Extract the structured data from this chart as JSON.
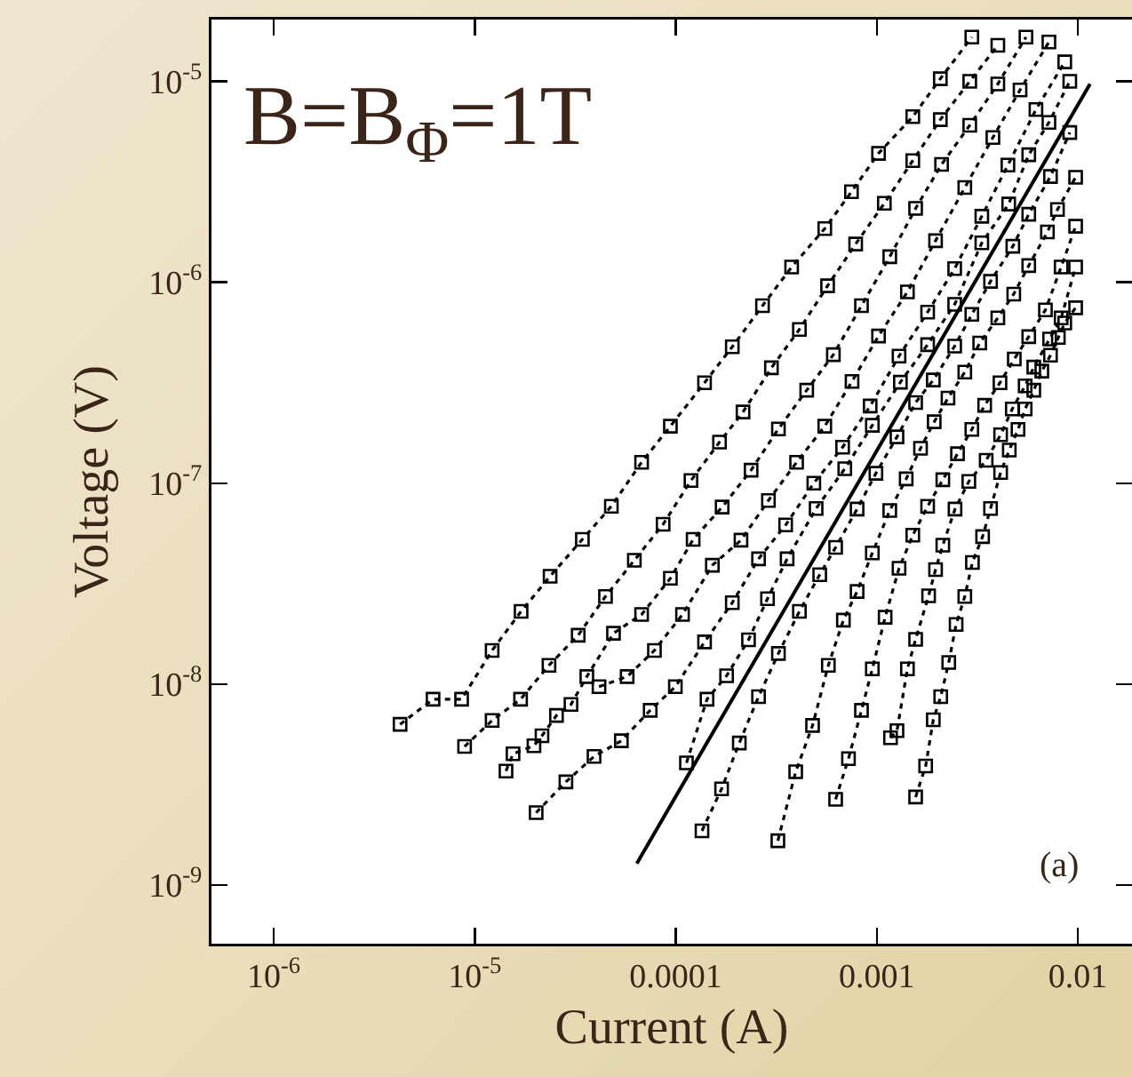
{
  "chart_data": {
    "type": "line",
    "xlabel": "Current (A)",
    "ylabel": "Voltage (V)",
    "log": "xy",
    "marker": "square",
    "line_style": "dotted",
    "annotations": [
      "B=B$_{Φ}$=1T",
      "(a)"
    ],
    "xlim": [
      4.9e-07,
      0.0186
    ],
    "ylim": [
      5.1e-10,
      2.03e-05
    ],
    "xticks": [
      {
        "value": 1e-06,
        "label": "10$^{-6}$"
      },
      {
        "value": 1e-05,
        "label": "10$^{-5}$"
      },
      {
        "value": 0.0001,
        "label": "0.0001"
      },
      {
        "value": 0.001,
        "label": "0.001"
      },
      {
        "value": 0.01,
        "label": "0.01"
      }
    ],
    "yticks": [
      {
        "value": 1e-09,
        "label": "10$^{-9}$"
      },
      {
        "value": 1e-08,
        "label": "10$^{-8}$"
      },
      {
        "value": 1e-07,
        "label": "10$^{-7}$"
      },
      {
        "value": 1e-06,
        "label": "10$^{-6}$"
      },
      {
        "value": 1e-05,
        "label": "10$^{-5}$"
      }
    ],
    "series": [
      {
        "color": "#000000",
        "x": [
          4.25e-06,
          6.2e-06,
          8.6e-06,
          1.22e-05,
          1.7e-05,
          2.37e-05,
          3.43e-05,
          4.78e-05,
          6.76e-05,
          9.4e-05,
          0.000139,
          0.000191,
          0.00027,
          0.000377,
          0.000551,
          0.000748,
          0.00102,
          0.00151,
          0.00207,
          0.00297
        ],
        "values": [
          6.3e-09,
          8.4e-09,
          8.4e-09,
          1.47e-08,
          2.3e-08,
          3.44e-08,
          5.25e-08,
          7.67e-08,
          1.27e-07,
          1.92e-07,
          3.16e-07,
          4.77e-07,
          7.64e-07,
          1.19e-06,
          1.85e-06,
          2.82e-06,
          4.38e-06,
          6.67e-06,
          1.03e-05,
          1.66e-05
        ]
      },
      {
        "color": "#000000",
        "x": [
          8.9e-06,
          1.22e-05,
          1.69e-05,
          2.34e-05,
          3.27e-05,
          4.47e-05,
          6.22e-05,
          8.65e-05,
          0.000119,
          0.000165,
          0.000216,
          0.000299,
          0.000412,
          0.000569,
          0.000785,
          0.00109,
          0.00151,
          0.00207,
          0.0029,
          0.004
        ],
        "values": [
          4.89e-09,
          6.59e-09,
          8.4e-09,
          1.24e-08,
          1.75e-08,
          2.73e-08,
          4.13e-08,
          6.24e-08,
          1.03e-07,
          1.6e-07,
          2.26e-07,
          3.75e-07,
          5.82e-07,
          9.6e-07,
          1.55e-06,
          2.47e-06,
          4.03e-06,
          6.45e-06,
          1e-05,
          1.51e-05
        ]
      },
      {
        "color": "#000000",
        "x": [
          1.43e-05,
          1.55e-05,
          1.97e-05,
          2.16e-05,
          2.55e-05,
          3.01e-05,
          3.61e-05,
          4.9e-05,
          6.76e-05,
          9.4e-05,
          0.000122,
          0.00017,
          0.000237,
          0.000324,
          0.000448,
          0.000608,
          0.000839,
          0.00116,
          0.00156,
          0.0021,
          0.0029,
          0.004,
          0.00552
        ],
        "values": [
          3.69e-09,
          4.5e-09,
          4.93e-09,
          5.53e-09,
          6.98e-09,
          7.91e-09,
          1.09e-08,
          1.79e-08,
          2.22e-08,
          3.36e-08,
          5.25e-08,
          7.6e-08,
          1.16e-07,
          1.86e-07,
          2.9e-07,
          4.36e-07,
          7.64e-07,
          1.34e-06,
          2.33e-06,
          3.86e-06,
          6.04e-06,
          9.7e-06,
          1.66e-05
        ]
      },
      {
        "color": "#000000",
        "x": [
          4.15e-05,
          5.73e-05,
          7.83e-05,
          0.000108,
          0.000152,
          0.000211,
          0.000289,
          0.000399,
          0.000551,
          0.000753,
          0.00102,
          0.00142,
          0.00196,
          0.00274,
          0.00378,
          0.00516,
          0.00718
        ],
        "values": [
          9.7e-09,
          1.09e-08,
          1.47e-08,
          2.22e-08,
          3.9e-08,
          5.2e-08,
          8.2e-08,
          1.27e-07,
          1.92e-07,
          3.21e-07,
          5.4e-07,
          8.95e-07,
          1.61e-06,
          2.96e-06,
          5.25e-06,
          9.06e-06,
          1.57e-05
        ]
      },
      {
        "color": "#000000",
        "x": [
          2.02e-05,
          2.84e-05,
          3.92e-05,
          5.36e-05,
          7.46e-05,
          9.95e-05,
          0.000139,
          0.000191,
          0.000258,
          0.000352,
          0.000486,
          0.000676,
          0.000927,
          0.00129,
          0.00179,
          0.00244,
          0.00333,
          0.00449,
          0.00619,
          0.00861
        ],
        "values": [
          2.29e-09,
          3.26e-09,
          4.36e-09,
          5.22e-09,
          7.4e-09,
          9.7e-09,
          1.62e-08,
          2.54e-08,
          4.2e-08,
          6.19e-08,
          1e-07,
          1.51e-07,
          2.42e-07,
          4.29e-07,
          7.1e-07,
          1.17e-06,
          2.13e-06,
          3.83e-06,
          7.24e-06,
          1.25e-05
        ]
      },
      {
        "color": "#000000",
        "x": [
          0.000113,
          0.000143,
          0.000179,
          0.00023,
          0.000286,
          0.000358,
          0.000499,
          0.000693,
          0.00095,
          0.00131,
          0.00179,
          0.00244,
          0.00333,
          0.00453,
          0.0057,
          0.00718,
          0.00912
        ],
        "values": [
          4.05e-09,
          8.4e-09,
          1.1e-08,
          1.66e-08,
          2.66e-08,
          4.2e-08,
          7.48e-08,
          1.18e-07,
          1.94e-07,
          3.18e-07,
          4.89e-07,
          7.76e-07,
          1.57e-06,
          2.45e-06,
          4.31e-06,
          6.24e-06,
          1e-05
        ]
      },
      {
        "color": "#000000",
        "x": [
          0.000135,
          0.000169,
          0.000207,
          0.000258,
          0.000324,
          0.000412,
          0.00052,
          0.000624,
          0.000798,
          0.00099,
          0.00126,
          0.00156,
          0.00191,
          0.00244,
          0.00297,
          0.00368,
          0.00475,
          0.0057,
          0.00731,
          0.00912
        ],
        "values": [
          1.86e-09,
          3.01e-09,
          5.09e-09,
          8.65e-09,
          1.42e-08,
          2.3e-08,
          3.5e-08,
          4.79e-08,
          7.43e-08,
          1.12e-07,
          1.7e-07,
          2.52e-07,
          3.26e-07,
          4.81e-07,
          6.92e-07,
          1.01e-06,
          1.51e-06,
          2.18e-06,
          3.36e-06,
          5.56e-06
        ]
      },
      {
        "color": "#000000",
        "x": [
          0.000322,
          0.000395,
          0.000479,
          0.000574,
          0.000682,
          0.000798,
          0.00095,
          0.00116,
          0.0014,
          0.00165,
          0.00193,
          0.00226,
          0.00274,
          0.00325,
          0.004,
          0.0048,
          0.0057,
          0.00706,
          0.00792,
          0.00975
        ],
        "values": [
          1.66e-09,
          3.66e-09,
          6.22e-09,
          1.24e-08,
          2.08e-08,
          2.89e-08,
          4.49e-08,
          7.31e-08,
          1.05e-07,
          1.49e-07,
          2.02e-07,
          2.65e-07,
          3.57e-07,
          4.98e-07,
          6.64e-07,
          8.73e-07,
          1.21e-06,
          1.78e-06,
          2.3e-06,
          3.33e-06
        ]
      },
      {
        "color": "#000000",
        "x": [
          0.000624,
          0.000723,
          0.000839,
          0.00095,
          0.0011,
          0.00129,
          0.00151,
          0.00179,
          0.00213,
          0.00252,
          0.00297,
          0.00344,
          0.0041,
          0.00483,
          0.0057,
          0.0069,
          0.00826,
          0.00975
        ],
        "values": [
          2.67e-09,
          4.25e-09,
          7.4e-09,
          1.19e-08,
          2.15e-08,
          3.77e-08,
          5.51e-08,
          7.67e-08,
          1.04e-07,
          1.4e-07,
          1.85e-07,
          2.44e-07,
          3.16e-07,
          4.15e-07,
          5.36e-07,
          7.28e-07,
          1.19e-06,
          1.9e-06
        ]
      },
      {
        "color": "#000000",
        "x": [
          0.00117,
          0.00126,
          0.00142,
          0.00156,
          0.00181,
          0.00196,
          0.00213,
          0.00245,
          0.00287,
          0.0035,
          0.00413,
          0.00472,
          0.00547,
          0.00604,
          0.00724,
          0.00826,
          0.00975
        ],
        "values": [
          5.4e-09,
          5.86e-09,
          1.19e-08,
          1.67e-08,
          2.75e-08,
          3.71e-08,
          4.91e-08,
          7.43e-08,
          1.02e-07,
          1.3e-07,
          1.74e-07,
          2.34e-07,
          3.05e-07,
          3.78e-07,
          5.22e-07,
          6.64e-07,
          1.19e-06
        ]
      },
      {
        "color": "#000000",
        "x": [
          0.00156,
          0.00175,
          0.00191,
          0.00208,
          0.00228,
          0.00248,
          0.00274,
          0.00299,
          0.00336,
          0.00368,
          0.00413,
          0.00456,
          0.00504,
          0.00547,
          0.00604,
          0.00662,
          0.00731,
          0.008,
          0.00861,
          0.00975
        ],
        "values": [
          2.74e-09,
          3.91e-09,
          6.64e-09,
          8.65e-09,
          1.28e-08,
          1.98e-08,
          2.73e-08,
          4.03e-08,
          5.42e-08,
          7.48e-08,
          1.13e-07,
          1.46e-07,
          1.85e-07,
          2.34e-07,
          2.9e-07,
          3.61e-07,
          4.33e-07,
          5.31e-07,
          6.27e-07,
          7.46e-07
        ]
      },
      {
        "color": "#000000",
        "marker": "none",
        "line_style": "solid",
        "x": [
          6.4e-05,
          0.0115
        ],
        "values": [
          1.28e-09,
          9.7e-06
        ]
      }
    ]
  }
}
